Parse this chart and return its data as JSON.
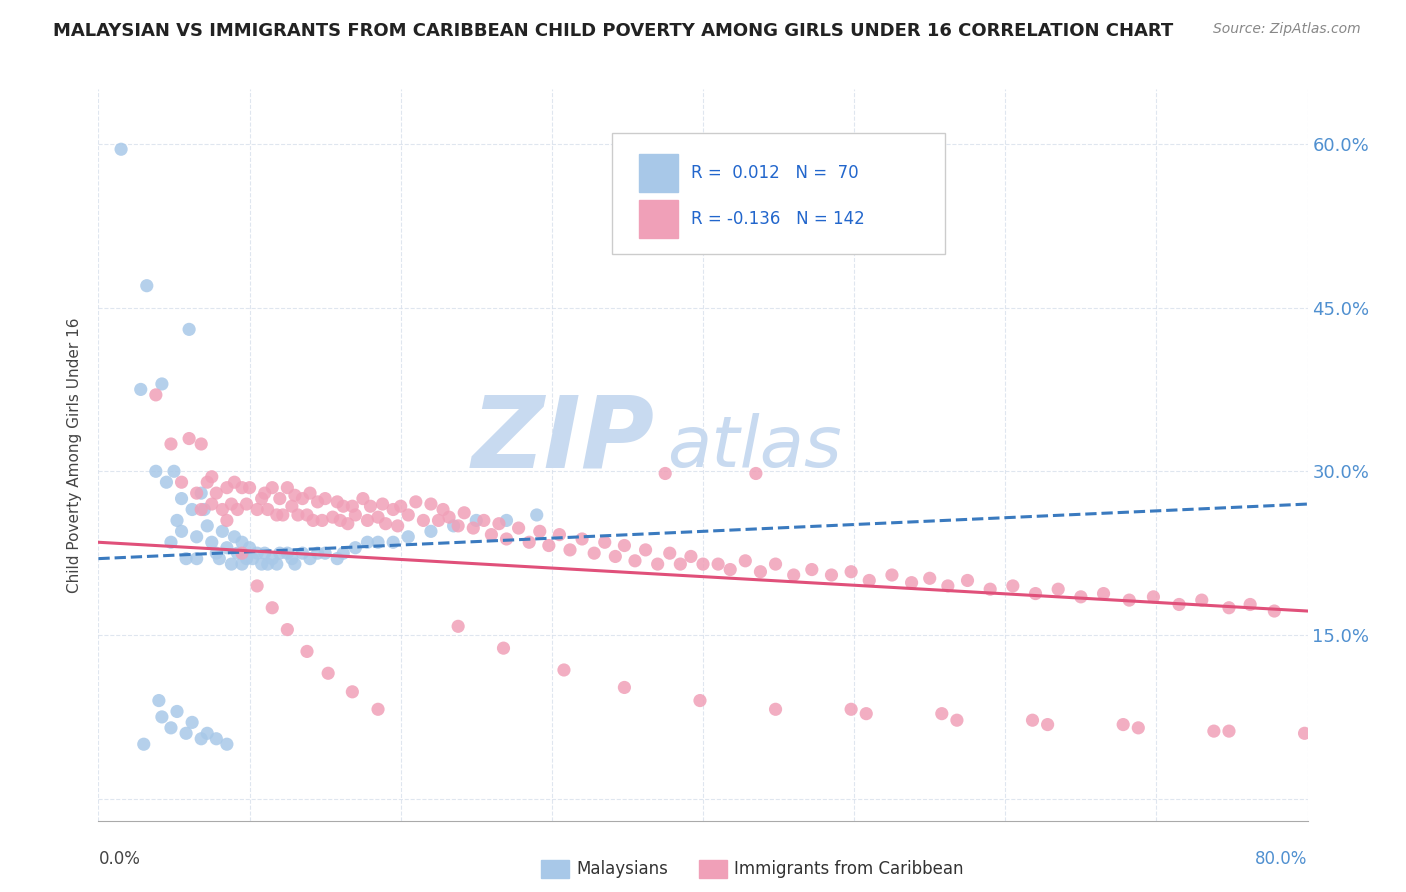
{
  "title": "MALAYSIAN VS IMMIGRANTS FROM CARIBBEAN CHILD POVERTY AMONG GIRLS UNDER 16 CORRELATION CHART",
  "source": "Source: ZipAtlas.com",
  "ylabel": "Child Poverty Among Girls Under 16",
  "xlim": [
    0.0,
    0.8
  ],
  "ylim": [
    -0.02,
    0.65
  ],
  "right_ytick_vals": [
    0.0,
    0.15,
    0.3,
    0.45,
    0.6
  ],
  "right_yticklabels": [
    "",
    "15.0%",
    "30.0%",
    "45.0%",
    "60.0%"
  ],
  "blue_color": "#a8c8e8",
  "pink_color": "#f0a0b8",
  "blue_line_color": "#3a7abf",
  "pink_line_color": "#e0507a",
  "watermark_zip": "ZIP",
  "watermark_atlas": "atlas",
  "watermark_color": "#c8daf0",
  "blue_scatter_x": [
    0.015,
    0.028,
    0.032,
    0.038,
    0.042,
    0.045,
    0.048,
    0.05,
    0.052,
    0.055,
    0.055,
    0.058,
    0.06,
    0.062,
    0.065,
    0.065,
    0.068,
    0.07,
    0.072,
    0.075,
    0.078,
    0.08,
    0.082,
    0.085,
    0.088,
    0.09,
    0.092,
    0.095,
    0.095,
    0.098,
    0.1,
    0.102,
    0.105,
    0.108,
    0.11,
    0.112,
    0.115,
    0.118,
    0.12,
    0.125,
    0.128,
    0.13,
    0.135,
    0.14,
    0.145,
    0.15,
    0.158,
    0.162,
    0.17,
    0.178,
    0.185,
    0.195,
    0.205,
    0.22,
    0.235,
    0.25,
    0.27,
    0.29,
    0.04,
    0.042,
    0.048,
    0.052,
    0.058,
    0.062,
    0.068,
    0.072,
    0.078,
    0.085,
    0.03
  ],
  "blue_scatter_y": [
    0.595,
    0.375,
    0.47,
    0.3,
    0.38,
    0.29,
    0.235,
    0.3,
    0.255,
    0.275,
    0.245,
    0.22,
    0.43,
    0.265,
    0.24,
    0.22,
    0.28,
    0.265,
    0.25,
    0.235,
    0.225,
    0.22,
    0.245,
    0.23,
    0.215,
    0.24,
    0.225,
    0.235,
    0.215,
    0.22,
    0.23,
    0.22,
    0.225,
    0.215,
    0.225,
    0.215,
    0.22,
    0.215,
    0.225,
    0.225,
    0.22,
    0.215,
    0.225,
    0.22,
    0.225,
    0.225,
    0.22,
    0.225,
    0.23,
    0.235,
    0.235,
    0.235,
    0.24,
    0.245,
    0.25,
    0.255,
    0.255,
    0.26,
    0.09,
    0.075,
    0.065,
    0.08,
    0.06,
    0.07,
    0.055,
    0.06,
    0.055,
    0.05,
    0.05
  ],
  "pink_scatter_x": [
    0.038,
    0.048,
    0.055,
    0.06,
    0.065,
    0.068,
    0.072,
    0.075,
    0.078,
    0.082,
    0.085,
    0.088,
    0.09,
    0.092,
    0.095,
    0.098,
    0.1,
    0.105,
    0.108,
    0.11,
    0.112,
    0.115,
    0.118,
    0.12,
    0.122,
    0.125,
    0.128,
    0.13,
    0.132,
    0.135,
    0.138,
    0.14,
    0.142,
    0.145,
    0.148,
    0.15,
    0.155,
    0.158,
    0.16,
    0.162,
    0.165,
    0.168,
    0.17,
    0.175,
    0.178,
    0.18,
    0.185,
    0.188,
    0.19,
    0.195,
    0.198,
    0.2,
    0.205,
    0.21,
    0.215,
    0.22,
    0.225,
    0.228,
    0.232,
    0.238,
    0.242,
    0.248,
    0.255,
    0.26,
    0.265,
    0.27,
    0.278,
    0.285,
    0.292,
    0.298,
    0.305,
    0.312,
    0.32,
    0.328,
    0.335,
    0.342,
    0.348,
    0.355,
    0.362,
    0.37,
    0.378,
    0.385,
    0.392,
    0.4,
    0.41,
    0.418,
    0.428,
    0.438,
    0.448,
    0.46,
    0.472,
    0.485,
    0.498,
    0.51,
    0.525,
    0.538,
    0.55,
    0.562,
    0.575,
    0.59,
    0.605,
    0.62,
    0.635,
    0.65,
    0.665,
    0.682,
    0.698,
    0.715,
    0.73,
    0.748,
    0.762,
    0.778,
    0.068,
    0.075,
    0.085,
    0.095,
    0.105,
    0.115,
    0.125,
    0.138,
    0.152,
    0.168,
    0.185,
    0.238,
    0.268,
    0.308,
    0.348,
    0.398,
    0.448,
    0.508,
    0.568,
    0.628,
    0.688,
    0.748,
    0.375,
    0.435,
    0.498,
    0.558,
    0.618,
    0.678,
    0.738,
    0.798
  ],
  "pink_scatter_y": [
    0.37,
    0.325,
    0.29,
    0.33,
    0.28,
    0.265,
    0.29,
    0.27,
    0.28,
    0.265,
    0.285,
    0.27,
    0.29,
    0.265,
    0.285,
    0.27,
    0.285,
    0.265,
    0.275,
    0.28,
    0.265,
    0.285,
    0.26,
    0.275,
    0.26,
    0.285,
    0.268,
    0.278,
    0.26,
    0.275,
    0.26,
    0.28,
    0.255,
    0.272,
    0.255,
    0.275,
    0.258,
    0.272,
    0.255,
    0.268,
    0.252,
    0.268,
    0.26,
    0.275,
    0.255,
    0.268,
    0.258,
    0.27,
    0.252,
    0.265,
    0.25,
    0.268,
    0.26,
    0.272,
    0.255,
    0.27,
    0.255,
    0.265,
    0.258,
    0.25,
    0.262,
    0.248,
    0.255,
    0.242,
    0.252,
    0.238,
    0.248,
    0.235,
    0.245,
    0.232,
    0.242,
    0.228,
    0.238,
    0.225,
    0.235,
    0.222,
    0.232,
    0.218,
    0.228,
    0.215,
    0.225,
    0.215,
    0.222,
    0.215,
    0.215,
    0.21,
    0.218,
    0.208,
    0.215,
    0.205,
    0.21,
    0.205,
    0.208,
    0.2,
    0.205,
    0.198,
    0.202,
    0.195,
    0.2,
    0.192,
    0.195,
    0.188,
    0.192,
    0.185,
    0.188,
    0.182,
    0.185,
    0.178,
    0.182,
    0.175,
    0.178,
    0.172,
    0.325,
    0.295,
    0.255,
    0.225,
    0.195,
    0.175,
    0.155,
    0.135,
    0.115,
    0.098,
    0.082,
    0.158,
    0.138,
    0.118,
    0.102,
    0.09,
    0.082,
    0.078,
    0.072,
    0.068,
    0.065,
    0.062,
    0.298,
    0.298,
    0.082,
    0.078,
    0.072,
    0.068,
    0.062,
    0.06
  ]
}
